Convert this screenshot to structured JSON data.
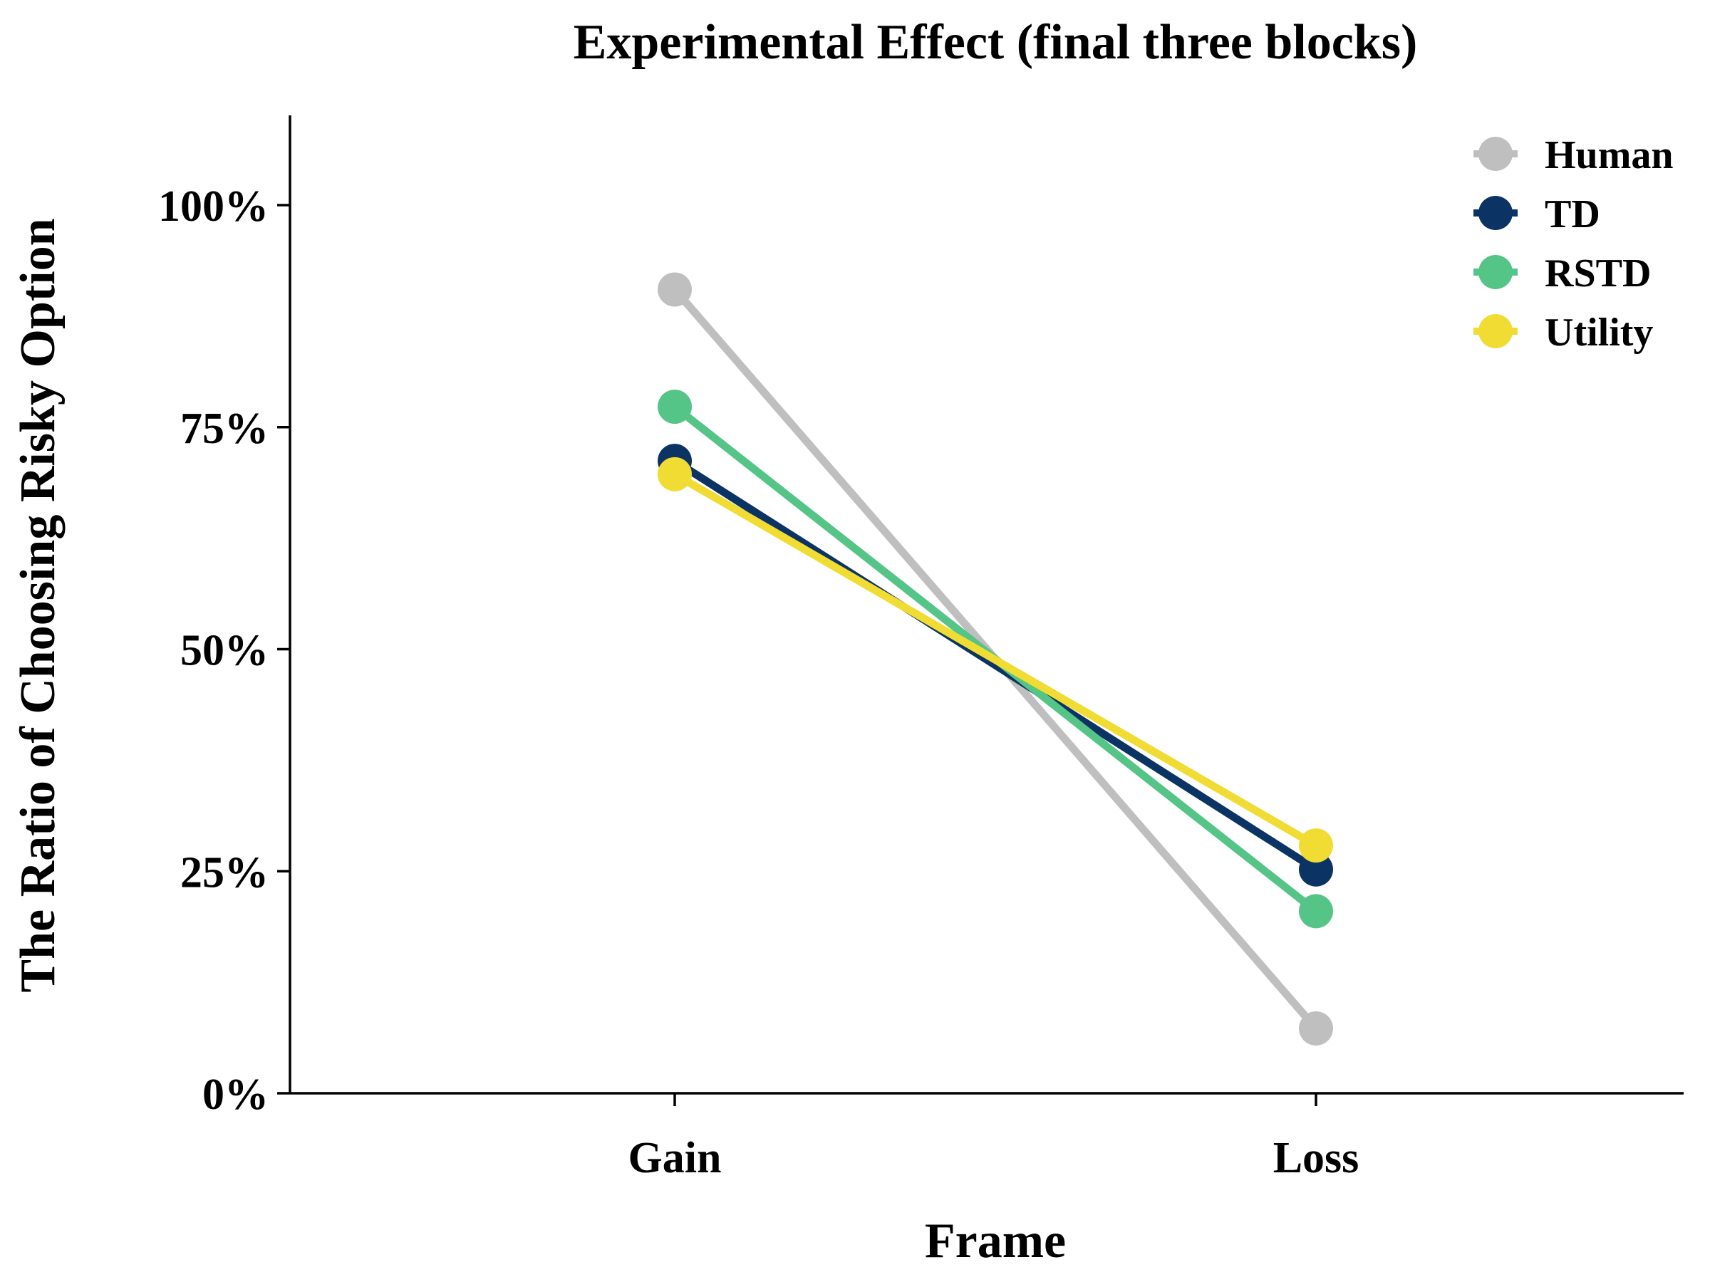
{
  "chart_data": {
    "type": "line",
    "title": "Experimental Effect (final three blocks)",
    "xlabel": "Frame",
    "ylabel": "The Ratio of Choosing Risky Option",
    "categories": [
      "Gain",
      "Loss"
    ],
    "ylim": [
      0,
      1.1
    ],
    "yticks": [
      0,
      0.25,
      0.5,
      0.75,
      1.0
    ],
    "ytick_labels": [
      "0%",
      "25%",
      "50%",
      "75%",
      "100%"
    ],
    "grid": false,
    "legend_position": "top-right",
    "series": [
      {
        "name": "Human",
        "color": "#bfbfbf",
        "values": [
          0.905,
          0.073
        ]
      },
      {
        "name": "TD",
        "color": "#0b3363",
        "values": [
          0.712,
          0.252
        ]
      },
      {
        "name": "RSTD",
        "color": "#55c487",
        "values": [
          0.773,
          0.205
        ]
      },
      {
        "name": "Utility",
        "color": "#f0dc32",
        "values": [
          0.697,
          0.279
        ]
      }
    ]
  }
}
